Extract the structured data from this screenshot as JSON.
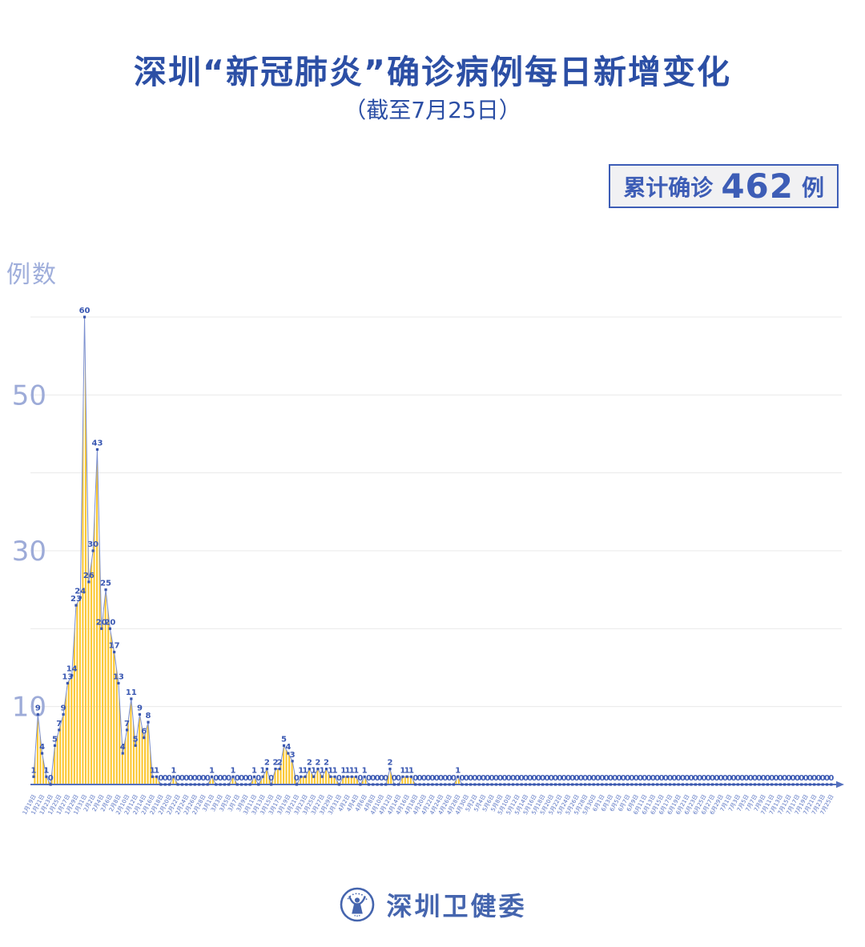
{
  "page": {
    "title": "深圳“新冠肺炎”确诊病例每日新增变化",
    "subtitle": "（截至7月25日）"
  },
  "badge": {
    "prefix": "累计确诊",
    "value": "462",
    "suffix": "例"
  },
  "footer": {
    "brand": "深圳卫健委",
    "emblem_icon": "shenzhen-health-commission-emblem"
  },
  "chart_data": {
    "type": "area",
    "title": "深圳“新冠肺炎”确诊病例每日新增变化",
    "subtitle": "（截至7月25日）",
    "ylabel": "例数",
    "xlabel": "",
    "ylim": [
      0,
      62
    ],
    "grid": true,
    "gridlines": [
      10,
      20,
      30,
      40,
      50,
      60
    ],
    "yticks_labeled": [
      10,
      30,
      50
    ],
    "x_label_every": 2,
    "cumulative_total": 462,
    "x": [
      "1月19日",
      "1月20日",
      "1月21日",
      "1月22日",
      "1月23日",
      "1月24日",
      "1月25日",
      "1月26日",
      "1月27日",
      "1月28日",
      "1月29日",
      "1月30日",
      "1月31日",
      "2月1日",
      "2月2日",
      "2月3日",
      "2月4日",
      "2月5日",
      "2月6日",
      "2月7日",
      "2月8日",
      "2月9日",
      "2月10日",
      "2月11日",
      "2月12日",
      "2月13日",
      "2月14日",
      "2月15日",
      "2月16日",
      "2月17日",
      "2月18日",
      "2月19日",
      "2月20日",
      "2月21日",
      "2月22日",
      "2月23日",
      "2月24日",
      "2月25日",
      "2月26日",
      "2月27日",
      "2月28日",
      "2月29日",
      "3月1日",
      "3月2日",
      "3月3日",
      "3月4日",
      "3月5日",
      "3月6日",
      "3月7日",
      "3月8日",
      "3月9日",
      "3月10日",
      "3月11日",
      "3月12日",
      "3月13日",
      "3月14日",
      "3月15日",
      "3月16日",
      "3月17日",
      "3月18日",
      "3月19日",
      "3月20日",
      "3月21日",
      "3月22日",
      "3月23日",
      "3月24日",
      "3月25日",
      "3月26日",
      "3月27日",
      "3月28日",
      "3月29日",
      "3月30日",
      "3月31日",
      "4月1日",
      "4月2日",
      "4月3日",
      "4月4日",
      "4月5日",
      "4月6日",
      "4月7日",
      "4月8日",
      "4月9日",
      "4月10日",
      "4月11日",
      "4月12日",
      "4月13日",
      "4月14日",
      "4月15日",
      "4月16日",
      "4月17日",
      "4月18日",
      "4月19日",
      "4月20日",
      "4月21日",
      "4月22日",
      "4月23日",
      "4月24日",
      "4月25日",
      "4月26日",
      "4月27日",
      "4月28日",
      "4月29日",
      "4月30日",
      "5月1日",
      "5月2日",
      "5月3日",
      "5月4日",
      "5月5日",
      "5月6日",
      "5月7日",
      "5月8日",
      "5月9日",
      "5月10日",
      "5月11日",
      "5月12日",
      "5月13日",
      "5月14日",
      "5月15日",
      "5月16日",
      "5月17日",
      "5月18日",
      "5月19日",
      "5月20日",
      "5月21日",
      "5月22日",
      "5月23日",
      "5月24日",
      "5月25日",
      "5月26日",
      "5月27日",
      "5月28日",
      "5月29日",
      "5月30日",
      "5月31日",
      "6月1日",
      "6月2日",
      "6月3日",
      "6月4日",
      "6月5日",
      "6月6日",
      "6月7日",
      "6月8日",
      "6月9日",
      "6月10日",
      "6月11日",
      "6月12日",
      "6月13日",
      "6月14日",
      "6月15日",
      "6月16日",
      "6月17日",
      "6月18日",
      "6月19日",
      "6月20日",
      "6月21日",
      "6月22日",
      "6月23日",
      "6月24日",
      "6月25日",
      "6月26日",
      "6月27日",
      "6月28日",
      "6月29日",
      "6月30日",
      "7月1日",
      "7月2日",
      "7月3日",
      "7月4日",
      "7月5日",
      "7月6日",
      "7月7日",
      "7月8日",
      "7月9日",
      "7月10日",
      "7月11日",
      "7月12日",
      "7月13日",
      "7月14日",
      "7月15日",
      "7月16日",
      "7月17日",
      "7月18日",
      "7月19日",
      "7月20日",
      "7月21日",
      "7月22日",
      "7月23日",
      "7月24日",
      "7月25日"
    ],
    "values": [
      1,
      9,
      4,
      1,
      0,
      5,
      7,
      9,
      13,
      14,
      23,
      24,
      60,
      26,
      30,
      43,
      20,
      25,
      20,
      17,
      13,
      4,
      7,
      11,
      5,
      9,
      6,
      8,
      1,
      1,
      0,
      0,
      0,
      1,
      0,
      0,
      0,
      0,
      0,
      0,
      0,
      0,
      1,
      0,
      0,
      0,
      0,
      1,
      0,
      0,
      0,
      0,
      1,
      0,
      1,
      2,
      0,
      2,
      2,
      5,
      4,
      3,
      0,
      1,
      1,
      2,
      1,
      2,
      1,
      2,
      1,
      1,
      0,
      1,
      1,
      1,
      1,
      0,
      1,
      0,
      0,
      0,
      0,
      0,
      2,
      0,
      0,
      1,
      1,
      1,
      0,
      0,
      0,
      0,
      0,
      0,
      0,
      0,
      0,
      0,
      1,
      0,
      0,
      0,
      0,
      0,
      0,
      0,
      0,
      0,
      0,
      0,
      0,
      0,
      0,
      0,
      0,
      0,
      0,
      0,
      0,
      0,
      0,
      0,
      0,
      0,
      0,
      0,
      0,
      0,
      0,
      0,
      0,
      0,
      0,
      0,
      0,
      0,
      0,
      0,
      0,
      0,
      0,
      0,
      0,
      0,
      0,
      0,
      0,
      0,
      0,
      0,
      0,
      0,
      0,
      0,
      0,
      0,
      0,
      0,
      0,
      0,
      0,
      0,
      0,
      0,
      0,
      0,
      0,
      0,
      0,
      0,
      0,
      0,
      0,
      0,
      0,
      0,
      0,
      0,
      0,
      0,
      0,
      0,
      0,
      0,
      0,
      0,
      0
    ],
    "colors": {
      "title": "#2C4FA5",
      "badge_border": "#3D5DB6",
      "badge_bg": "#F1F1F3",
      "area_fill": "#FBC62E",
      "line": "#7B8FD0",
      "marker": "#3A57AE",
      "point_label": "#3A58B2",
      "axis": "#5470BE",
      "grid": "#E9E9E9",
      "y_tick_label": "#9DABD8",
      "x_tick_label": "#5873C2",
      "footer": "#4565AE"
    }
  }
}
